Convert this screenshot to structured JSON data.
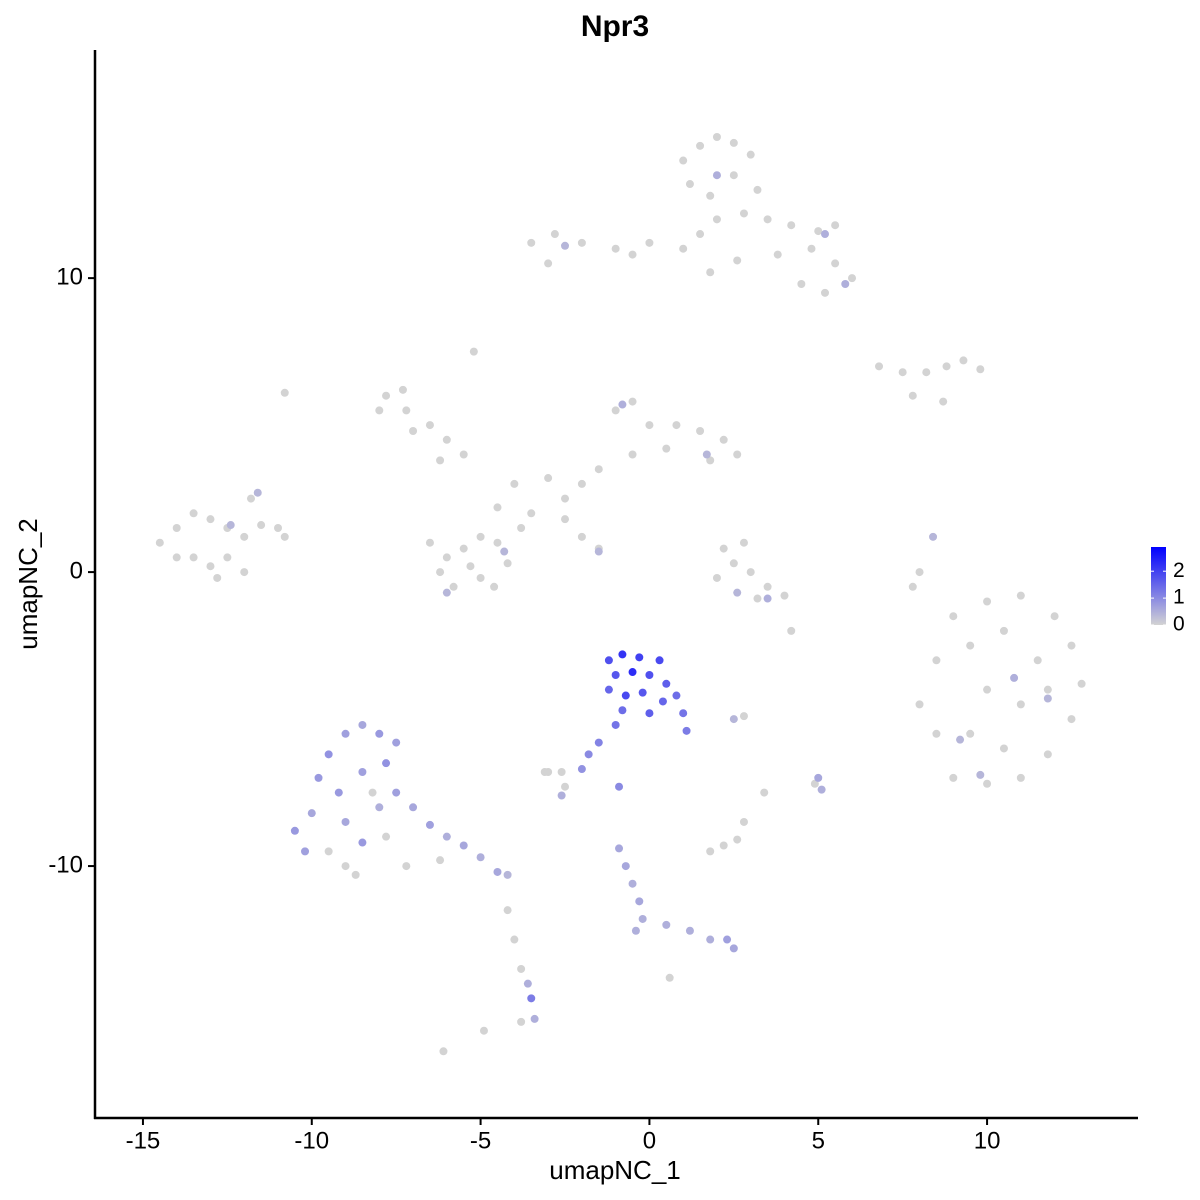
{
  "chart_data": {
    "type": "scatter",
    "title": "Npr3",
    "x_label": "umapNC_1",
    "y_label": "umapNC_2",
    "xlim": [
      -16.42,
      14.47
    ],
    "ylim": [
      -18.57,
      17.76
    ],
    "xticks": [
      -15,
      -10,
      -5,
      0,
      5,
      10
    ],
    "yticks": [
      -10,
      0,
      10
    ],
    "x": [
      1.0,
      1.5,
      2.0,
      2.5,
      3.0,
      1.2,
      1.8,
      2.5,
      3.2,
      2.0,
      1.5,
      2.8,
      3.5,
      4.2,
      5.0,
      5.5,
      4.8,
      5.5,
      6.0,
      5.2,
      4.5,
      3.8,
      1.0,
      0.0,
      -1.0,
      -2.0,
      -2.8,
      -3.5,
      -3.0,
      -0.5,
      1.8,
      2.6,
      2.0,
      5.2,
      5.8,
      -2.5,
      6.8,
      7.5,
      8.2,
      8.8,
      9.3,
      9.8,
      8.7,
      7.8,
      -7.8,
      -7.3,
      -8.0,
      -7.2,
      -6.5,
      -7.0,
      -6.0,
      -5.5,
      -6.2,
      -1.0,
      -0.5,
      0.0,
      0.8,
      1.5,
      2.2,
      2.6,
      1.8,
      0.5,
      -0.5,
      -1.5,
      -2.0,
      -2.5,
      -3.0,
      -4.0,
      -4.5,
      -3.5,
      -6.5,
      -6.0,
      -5.5,
      -5.0,
      -4.5,
      -4.2,
      -5.0,
      -5.8,
      -6.2,
      -5.3,
      -4.6,
      -3.8,
      -2.5,
      -2.0,
      -1.5,
      -5.2,
      -10.8,
      -0.8,
      1.7,
      -4.3,
      -6.0,
      -1.5,
      -14.5,
      -14.0,
      -13.5,
      -13.0,
      -12.5,
      -12.0,
      -11.5,
      -11.0,
      -10.8,
      -13.5,
      -13.0,
      -12.5,
      -12.0,
      -12.8,
      -11.8,
      -14.0,
      -12.4,
      -11.6,
      2.2,
      2.5,
      3.0,
      3.5,
      4.0,
      3.2,
      2.0,
      2.8,
      4.2,
      2.6,
      3.5,
      9.0,
      10.0,
      11.0,
      12.0,
      12.5,
      12.8,
      12.5,
      11.8,
      11.0,
      10.0,
      9.0,
      8.5,
      8.0,
      8.5,
      9.5,
      10.5,
      11.5,
      10.0,
      11.0,
      9.5,
      10.5,
      11.8,
      8.0,
      7.8,
      8.4,
      10.8,
      11.8,
      9.2,
      9.8,
      -1.2,
      -0.8,
      -0.3,
      0.3,
      -1.0,
      -0.5,
      0.0,
      0.5,
      -1.2,
      -0.7,
      -0.2,
      0.4,
      0.8,
      1.0,
      1.1,
      -0.8,
      0.0,
      -1.0,
      -1.5,
      -1.8,
      -2.0,
      -2.6,
      -3.0,
      -2.5,
      -2.6,
      -0.9,
      2.8,
      2.5,
      -10.5,
      -10.2,
      -10.0,
      -9.8,
      -9.5,
      -9.0,
      -8.5,
      -8.0,
      -7.5,
      -7.8,
      -8.5,
      -9.2,
      -9.0,
      -8.5,
      -8.0,
      -7.5,
      -8.2,
      -7.8,
      -9.5,
      -7.0,
      -6.5,
      -6.0,
      -5.5,
      -5.0,
      -4.5,
      -6.2,
      -7.2,
      -9.0,
      -8.7,
      -4.2,
      -4.2,
      -4.0,
      -3.8,
      -3.6,
      -3.5,
      -3.4,
      -3.8,
      -4.9,
      -6.1,
      -0.9,
      -0.7,
      -0.5,
      -0.3,
      -0.2,
      -0.4,
      0.5,
      1.2,
      1.8,
      2.3,
      2.5,
      0.6,
      1.8,
      2.2,
      2.6,
      2.8,
      3.4,
      5.0,
      5.1,
      4.9,
      -3.1
    ],
    "y": [
      14.0,
      14.5,
      14.8,
      14.6,
      14.2,
      13.2,
      12.8,
      13.5,
      13.0,
      12.0,
      11.5,
      12.2,
      12.0,
      11.8,
      11.6,
      11.8,
      11.0,
      10.5,
      10.0,
      9.5,
      9.8,
      10.8,
      11.0,
      11.2,
      11.0,
      11.2,
      11.5,
      11.2,
      10.5,
      10.8,
      10.2,
      10.6,
      13.5,
      11.5,
      9.8,
      11.1,
      7.0,
      6.8,
      6.8,
      7.0,
      7.2,
      6.9,
      5.8,
      6.0,
      6.0,
      6.2,
      5.5,
      5.5,
      5.0,
      4.8,
      4.5,
      4.0,
      3.8,
      5.5,
      5.8,
      5.0,
      5.0,
      4.8,
      4.5,
      4.0,
      3.8,
      4.2,
      4.0,
      3.5,
      3.0,
      2.5,
      3.2,
      3.0,
      2.2,
      2.0,
      1.0,
      0.5,
      0.8,
      1.2,
      1.0,
      0.3,
      -0.2,
      -0.5,
      0.0,
      0.2,
      -0.5,
      1.5,
      1.8,
      1.2,
      0.8,
      7.5,
      6.1,
      5.7,
      4.0,
      0.7,
      -0.7,
      0.7,
      1.0,
      1.5,
      2.0,
      1.8,
      1.5,
      1.2,
      1.6,
      1.5,
      1.2,
      0.5,
      0.2,
      0.5,
      0.0,
      -0.2,
      2.5,
      0.5,
      1.6,
      2.7,
      0.8,
      0.3,
      0.0,
      -0.5,
      -0.8,
      -0.9,
      -0.2,
      1.0,
      -2.0,
      -0.7,
      -0.9,
      -1.5,
      -1.0,
      -0.8,
      -1.5,
      -2.5,
      -3.8,
      -5.0,
      -6.2,
      -7.0,
      -7.2,
      -7.0,
      -5.5,
      -4.5,
      -3.0,
      -2.5,
      -2.0,
      -3.0,
      -4.0,
      -4.5,
      -5.5,
      -6.0,
      -4.0,
      0.0,
      -0.5,
      1.2,
      -3.6,
      -4.3,
      -5.7,
      -6.9,
      -3.0,
      -2.8,
      -2.9,
      -3.0,
      -3.5,
      -3.4,
      -3.5,
      -3.8,
      -4.0,
      -4.2,
      -4.1,
      -4.4,
      -4.2,
      -4.8,
      -5.4,
      -4.7,
      -4.8,
      -5.2,
      -5.8,
      -6.2,
      -6.7,
      -6.8,
      -6.8,
      -7.3,
      -7.6,
      -7.3,
      -4.9,
      -5.0,
      -8.8,
      -9.5,
      -8.2,
      -7.0,
      -6.2,
      -5.5,
      -5.2,
      -5.5,
      -5.8,
      -6.5,
      -6.8,
      -7.5,
      -8.5,
      -9.2,
      -8.0,
      -7.5,
      -7.5,
      -9.0,
      -9.5,
      -8.0,
      -8.6,
      -9.0,
      -9.3,
      -9.7,
      -10.2,
      -9.8,
      -10.0,
      -10.0,
      -10.3,
      -10.3,
      -11.5,
      -12.5,
      -13.5,
      -14.0,
      -14.5,
      -15.2,
      -15.3,
      -15.6,
      -16.3,
      -9.4,
      -10.0,
      -10.6,
      -11.2,
      -11.8,
      -12.2,
      -12.0,
      -12.2,
      -12.5,
      -12.5,
      -12.8,
      -13.8,
      -9.5,
      -9.3,
      -9.1,
      -8.5,
      -7.5,
      -7.0,
      -7.4,
      -7.2,
      -6.8
    ],
    "expression": [
      0,
      0,
      0,
      0,
      0,
      0,
      0,
      0,
      0,
      0,
      0,
      0,
      0,
      0,
      0,
      0,
      0,
      0,
      0,
      0,
      0,
      0,
      0,
      0,
      0,
      0,
      0,
      0,
      0,
      0,
      0,
      0,
      0.5,
      0.5,
      0.5,
      0.4,
      0,
      0,
      0,
      0,
      0,
      0,
      0,
      0,
      0,
      0,
      0,
      0,
      0,
      0,
      0,
      0,
      0,
      0,
      0,
      0,
      0,
      0,
      0,
      0,
      0,
      0,
      0,
      0,
      0,
      0,
      0,
      0,
      0,
      0,
      0,
      0,
      0,
      0,
      0,
      0,
      0,
      0,
      0,
      0,
      0,
      0,
      0,
      0,
      0,
      0,
      0,
      0.5,
      0.4,
      0.4,
      0.4,
      0.4,
      0,
      0,
      0,
      0,
      0,
      0,
      0,
      0,
      0,
      0,
      0,
      0,
      0,
      0,
      0,
      0,
      0.4,
      0.4,
      0,
      0,
      0,
      0,
      0,
      0,
      0,
      0,
      0,
      0.4,
      0.5,
      0,
      0,
      0,
      0,
      0,
      0,
      0,
      0,
      0,
      0,
      0,
      0,
      0,
      0,
      0,
      0,
      0,
      0,
      0,
      0,
      0,
      0,
      0,
      0,
      0.4,
      0.5,
      0.4,
      0.4,
      0.4,
      1.8,
      2.2,
      2.0,
      1.9,
      1.7,
      2.3,
      1.8,
      1.6,
      1.5,
      1.9,
      1.7,
      1.5,
      1.4,
      1.3,
      1.2,
      1.4,
      1.6,
      1.3,
      1.1,
      1.0,
      0.9,
      0,
      0,
      0,
      0.5,
      1.0,
      0,
      0.4,
      0.8,
      0.7,
      0.6,
      0.8,
      0.9,
      0.7,
      0.6,
      0.8,
      0.7,
      0.9,
      0.7,
      0.8,
      0.6,
      0.8,
      0.5,
      0.7,
      0,
      0,
      0,
      0.6,
      0.7,
      0.5,
      0.6,
      0.5,
      0.6,
      0,
      0,
      0,
      0,
      0.4,
      0,
      0,
      0,
      0.5,
      1.2,
      0.5,
      0,
      0,
      0,
      0.6,
      0.6,
      0.5,
      0.6,
      0.5,
      0.5,
      0.5,
      0.5,
      0.5,
      0.7,
      0.6,
      0,
      0,
      0,
      0,
      0,
      0,
      0.6,
      0.5,
      0,
      0
    ],
    "colorbar": {
      "lim": [
        0,
        2.9
      ],
      "ticks": [
        0,
        1,
        2
      ],
      "low_color": "#d3d3d3",
      "high_color": "#0000ff"
    }
  }
}
